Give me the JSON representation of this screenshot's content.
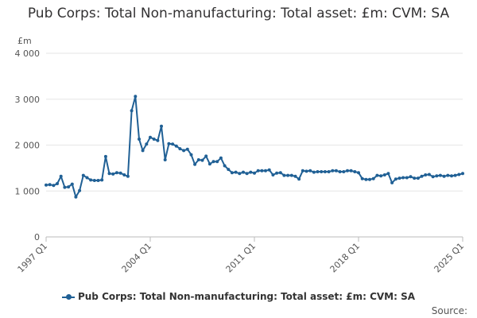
{
  "chart_data": {
    "type": "line",
    "title": "Pub Corps: Total Non-manufacturing: Total asset: £m: CVM: SA",
    "xlabel": "",
    "ylabel": "£m",
    "ylim": [
      0,
      4000
    ],
    "y_ticks": [
      "0",
      "1 000",
      "2 000",
      "3 000",
      "4 000"
    ],
    "y_tick_values": [
      0,
      1000,
      2000,
      3000,
      4000
    ],
    "x_ticks": [
      "1997 Q1",
      "2004 Q1",
      "2011 Q1",
      "2018 Q1",
      "2025 Q1"
    ],
    "grid": "horizontal",
    "legend_placement": "bottom",
    "line_color": "#206095",
    "source_label": "Source:",
    "series": [
      {
        "name": "Pub Corps: Total Non-manufacturing: Total asset: £m: CVM: SA",
        "start": "1997 Q1",
        "values": [
          1130,
          1140,
          1120,
          1160,
          1320,
          1080,
          1090,
          1150,
          870,
          1010,
          1340,
          1290,
          1240,
          1230,
          1230,
          1240,
          1750,
          1380,
          1370,
          1400,
          1390,
          1350,
          1320,
          2750,
          3060,
          2130,
          1880,
          2020,
          2170,
          2130,
          2100,
          2410,
          1680,
          2030,
          2020,
          1980,
          1920,
          1880,
          1910,
          1790,
          1580,
          1680,
          1670,
          1760,
          1590,
          1640,
          1640,
          1720,
          1550,
          1470,
          1400,
          1410,
          1380,
          1410,
          1380,
          1410,
          1390,
          1440,
          1440,
          1440,
          1460,
          1350,
          1390,
          1400,
          1340,
          1340,
          1340,
          1320,
          1260,
          1440,
          1430,
          1440,
          1410,
          1420,
          1420,
          1420,
          1420,
          1440,
          1440,
          1420,
          1420,
          1440,
          1440,
          1420,
          1400,
          1270,
          1250,
          1250,
          1270,
          1340,
          1330,
          1350,
          1380,
          1180,
          1260,
          1280,
          1290,
          1290,
          1310,
          1280,
          1280,
          1320,
          1350,
          1360,
          1310,
          1330,
          1340,
          1320,
          1340,
          1330,
          1340,
          1360,
          1380
        ]
      }
    ]
  }
}
